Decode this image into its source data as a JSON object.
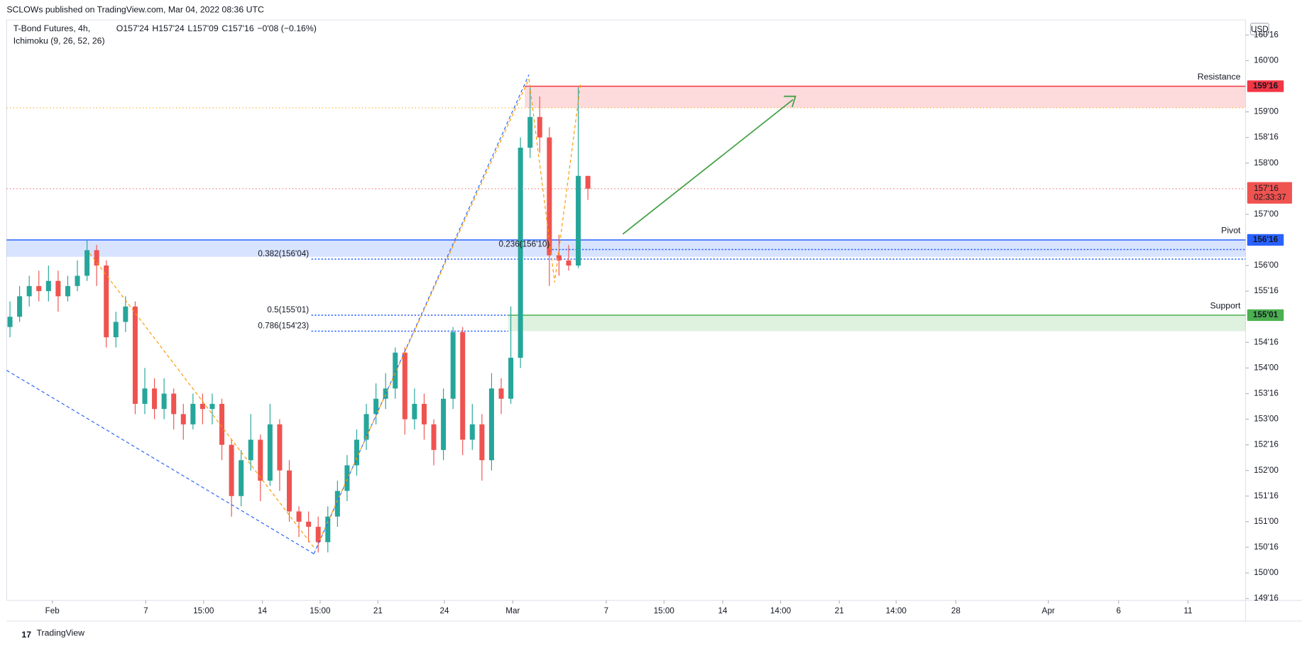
{
  "header": "SCLOWs published on TradingView.com, Mar 04, 2022 08:36 UTC",
  "footer": "TradingView",
  "chart_data": {
    "type": "candlestick",
    "title": "T-Bond Futures, 4h,",
    "indicator": "Ichimoku (9, 26, 52, 26)",
    "currency": "USD",
    "ohlc": [
      {
        "label": "O",
        "value": "157'24"
      },
      {
        "label": "H",
        "value": "157'24"
      },
      {
        "label": "L",
        "value": "157'09"
      },
      {
        "label": "C",
        "value": "157'16"
      }
    ],
    "change": "−0'08 (−0.16%)",
    "up_color": "#26a69a",
    "down_color": "#ef5350",
    "x": [
      0,
      1,
      2,
      3,
      4,
      5,
      6,
      7,
      8,
      9,
      10,
      11,
      12,
      13,
      14,
      15,
      16,
      17,
      18,
      19,
      20,
      21,
      22,
      23,
      24,
      25,
      26,
      27,
      28,
      29,
      30,
      31,
      32,
      33,
      34,
      35,
      36,
      37,
      38,
      39,
      40,
      41,
      42,
      43,
      44,
      45,
      46,
      47,
      48,
      49,
      50,
      51,
      52,
      53,
      54,
      55,
      56,
      57,
      58,
      59,
      60
    ],
    "open": [
      154.8,
      155.0,
      155.4,
      155.6,
      155.5,
      155.7,
      155.4,
      155.6,
      155.8,
      156.3,
      156.0,
      154.6,
      154.9,
      155.2,
      153.3,
      153.6,
      153.2,
      153.5,
      153.1,
      152.9,
      153.3,
      153.2,
      153.3,
      152.5,
      151.5,
      152.2,
      152.6,
      151.8,
      152.9,
      152.0,
      151.2,
      151.0,
      150.9,
      150.6,
      151.1,
      151.6,
      152.1,
      152.6,
      153.1,
      153.4,
      153.6,
      154.3,
      153.0,
      153.3,
      152.9,
      152.4,
      153.4,
      154.7,
      152.6,
      152.9,
      152.2,
      153.6,
      153.4,
      154.2,
      158.3,
      158.9,
      158.5,
      156.2,
      156.1,
      156.0,
      157.75
    ],
    "high": [
      155.3,
      155.6,
      155.8,
      155.9,
      156.0,
      155.9,
      155.8,
      156.1,
      156.5,
      156.4,
      156.1,
      155.1,
      155.4,
      155.3,
      154.0,
      153.8,
      153.8,
      153.6,
      153.3,
      153.5,
      153.5,
      153.5,
      153.4,
      152.6,
      152.4,
      153.1,
      152.7,
      153.3,
      153.0,
      152.2,
      151.3,
      151.2,
      151.1,
      151.3,
      151.8,
      152.3,
      152.8,
      153.3,
      153.7,
      153.9,
      154.4,
      154.4,
      153.6,
      153.5,
      153.0,
      153.6,
      154.8,
      154.8,
      153.3,
      153.1,
      153.9,
      153.8,
      155.2,
      158.5,
      159.5,
      159.3,
      158.7,
      156.6,
      156.4,
      159.48,
      157.75
    ],
    "low": [
      154.6,
      154.9,
      155.2,
      155.3,
      155.3,
      155.1,
      155.3,
      155.5,
      155.7,
      155.6,
      154.4,
      154.4,
      154.7,
      153.1,
      153.1,
      153.0,
      153.0,
      152.8,
      152.6,
      152.8,
      152.9,
      152.9,
      152.2,
      151.1,
      151.3,
      152.0,
      151.4,
      151.7,
      151.6,
      151.0,
      150.7,
      150.6,
      150.4,
      150.4,
      150.9,
      151.4,
      151.9,
      152.4,
      152.9,
      153.2,
      153.4,
      152.7,
      152.8,
      152.6,
      152.1,
      152.2,
      153.2,
      152.3,
      152.4,
      151.8,
      152.0,
      153.1,
      153.3,
      154.0,
      158.1,
      158.2,
      155.6,
      155.8,
      155.9,
      155.95,
      157.28
    ],
    "close": [
      155.0,
      155.4,
      155.6,
      155.5,
      155.7,
      155.4,
      155.6,
      155.8,
      156.3,
      156.0,
      154.6,
      154.9,
      155.2,
      153.3,
      153.6,
      153.2,
      153.5,
      153.1,
      152.9,
      153.3,
      153.2,
      153.3,
      152.5,
      151.5,
      152.2,
      152.6,
      151.8,
      152.9,
      152.0,
      151.2,
      151.0,
      150.9,
      150.6,
      151.1,
      151.6,
      152.1,
      152.6,
      153.1,
      153.4,
      153.6,
      154.3,
      153.0,
      153.3,
      152.9,
      152.4,
      153.4,
      154.7,
      152.6,
      152.9,
      152.2,
      153.6,
      153.4,
      154.2,
      158.3,
      158.9,
      158.5,
      156.2,
      156.1,
      156.0,
      157.75,
      157.5
    ],
    "xlim": [
      -0.345,
      128.276
    ],
    "xticks": [
      {
        "value": 4.4,
        "label": "Feb"
      },
      {
        "value": 14.1,
        "label": "7"
      },
      {
        "value": 20.1,
        "label": "15:00"
      },
      {
        "value": 26.2,
        "label": "14"
      },
      {
        "value": 32.2,
        "label": "15:00"
      },
      {
        "value": 38.2,
        "label": "21"
      },
      {
        "value": 45.1,
        "label": "24"
      },
      {
        "value": 52.2,
        "label": "Mar"
      },
      {
        "value": 61.9,
        "label": "7"
      },
      {
        "value": 67.9,
        "label": "15:00"
      },
      {
        "value": 74.0,
        "label": "14"
      },
      {
        "value": 80.0,
        "label": "14:00"
      },
      {
        "value": 86.1,
        "label": "21"
      },
      {
        "value": 92.0,
        "label": "14:00"
      },
      {
        "value": 98.2,
        "label": "28"
      },
      {
        "value": 107.8,
        "label": "Apr"
      },
      {
        "value": 115.1,
        "label": "6"
      },
      {
        "value": 122.3,
        "label": "11"
      }
    ],
    "ylim": [
      149.465,
      160.794
    ],
    "yticks": [
      {
        "value": 149.5,
        "label": "149'16"
      },
      {
        "value": 150,
        "label": "150'00"
      },
      {
        "value": 150.5,
        "label": "150'16"
      },
      {
        "value": 151,
        "label": "151'00"
      },
      {
        "value": 151.5,
        "label": "151'16"
      },
      {
        "value": 152,
        "label": "152'00"
      },
      {
        "value": 152.5,
        "label": "152'16"
      },
      {
        "value": 153,
        "label": "153'00"
      },
      {
        "value": 153.5,
        "label": "153'16"
      },
      {
        "value": 154,
        "label": "154'00"
      },
      {
        "value": 154.5,
        "label": "154'16"
      },
      {
        "value": 155.5,
        "label": "155'16"
      },
      {
        "value": 156,
        "label": "156'00"
      },
      {
        "value": 157,
        "label": "157'00"
      },
      {
        "value": 158,
        "label": "158'00"
      },
      {
        "value": 158.5,
        "label": "158'16"
      },
      {
        "value": 159,
        "label": "159'00"
      },
      {
        "value": 160,
        "label": "160'00"
      },
      {
        "value": 160.5,
        "label": "160'16"
      }
    ],
    "levels": [
      {
        "name": "Resistance",
        "value": 159.5,
        "bottom": 159.08,
        "label": "159'16",
        "color": "#f23645"
      },
      {
        "name": "Pivot",
        "value": 156.5,
        "bottom": 156.17,
        "label": "156'16",
        "color": "#2962ff"
      },
      {
        "name": "Support",
        "value": 155.03125,
        "bottom": 154.72,
        "label": "155'01",
        "color": "#4caf50"
      }
    ],
    "fibs": [
      {
        "label": "0.382(156'04)",
        "value": 156.125
      },
      {
        "label": "0.236(156'10)",
        "value": 156.3125
      },
      {
        "label": "0.5(155'01)",
        "value": 155.03125
      },
      {
        "label": "0.786(154'23)",
        "value": 154.71875
      }
    ],
    "last_price": {
      "value": 157.5,
      "label": "157'16",
      "countdown": "02:33:37"
    }
  }
}
